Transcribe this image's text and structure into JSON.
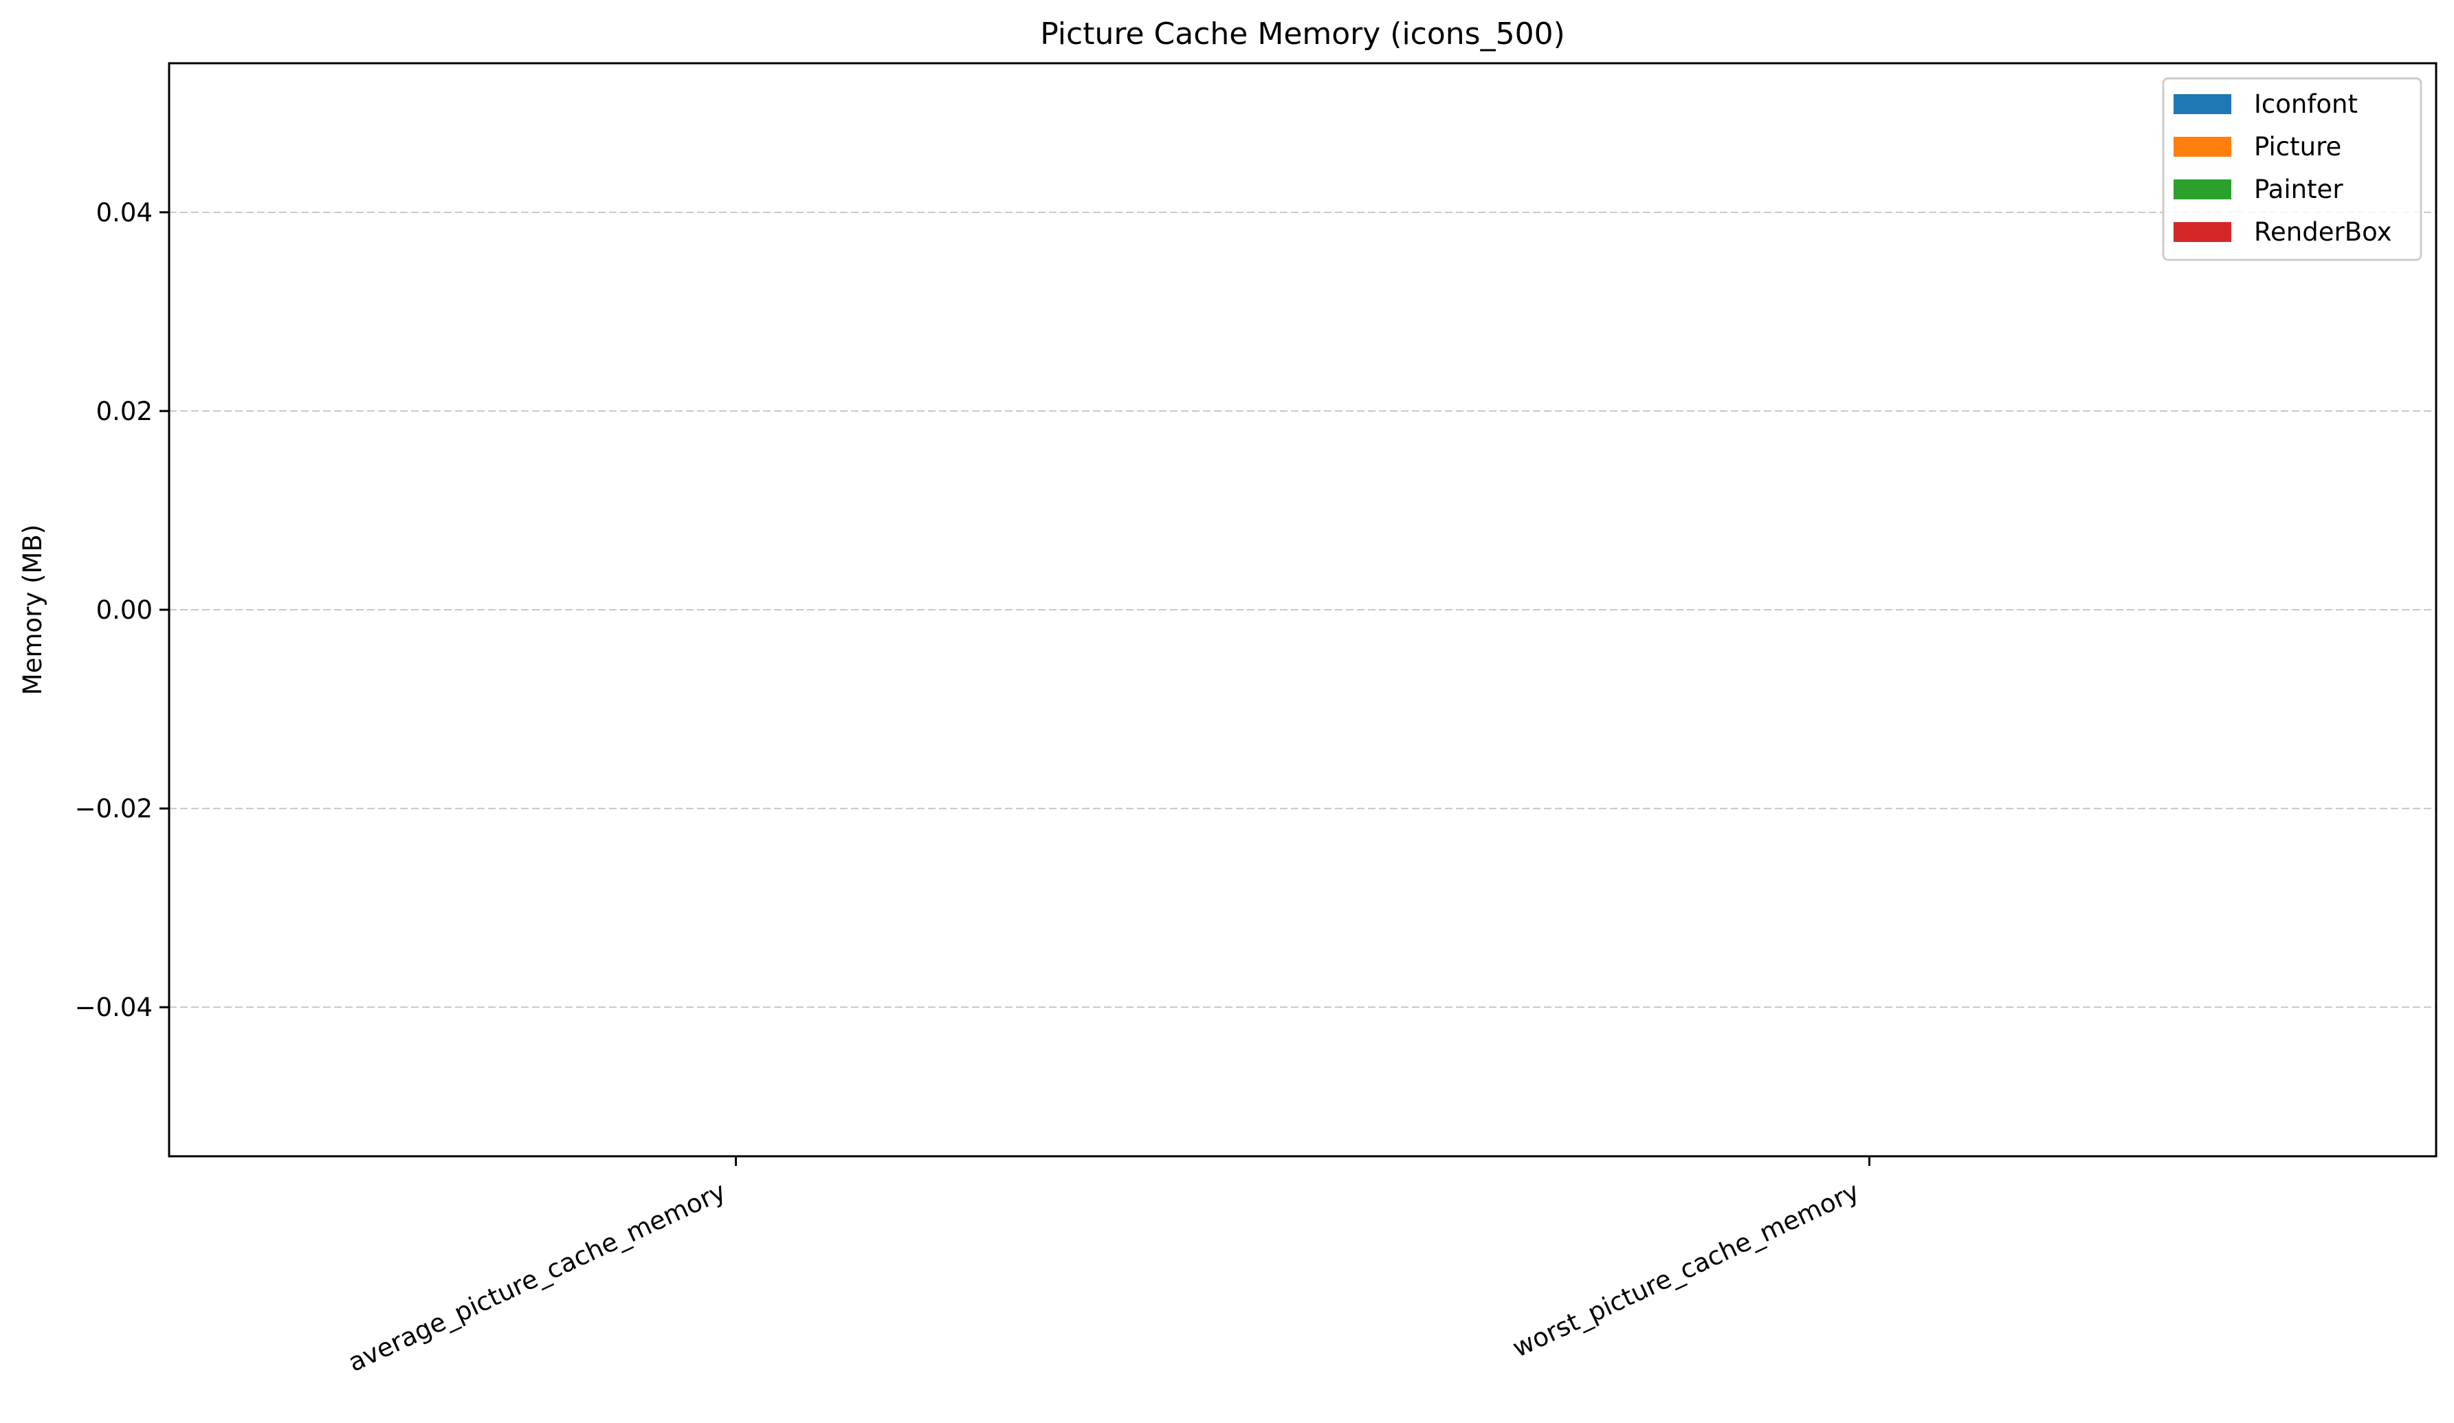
{
  "chart_data": {
    "type": "bar",
    "title": "Picture Cache Memory (icons_500)",
    "xlabel": "",
    "ylabel": "Memory (MB)",
    "categories": [
      "average_picture_cache_memory",
      "worst_picture_cache_memory"
    ],
    "series": [
      {
        "name": "Iconfont",
        "color": "#1f77b4",
        "values": [
          0,
          0
        ]
      },
      {
        "name": "Picture",
        "color": "#ff7f0e",
        "values": [
          0,
          0
        ]
      },
      {
        "name": "Painter",
        "color": "#2ca02c",
        "values": [
          0,
          0
        ]
      },
      {
        "name": "RenderBox",
        "color": "#d62728",
        "values": [
          0,
          0
        ]
      }
    ],
    "ylim": [
      -0.055,
      0.055
    ],
    "yticks": [
      -0.04,
      -0.02,
      0.0,
      0.02,
      0.04
    ],
    "ytick_labels": [
      "−0.04",
      "−0.02",
      "0.00",
      "0.02",
      "0.04"
    ],
    "grid": {
      "y": true,
      "style": "dashed",
      "color": "#c8c8c8"
    },
    "legend": {
      "placement": "top-right"
    }
  }
}
